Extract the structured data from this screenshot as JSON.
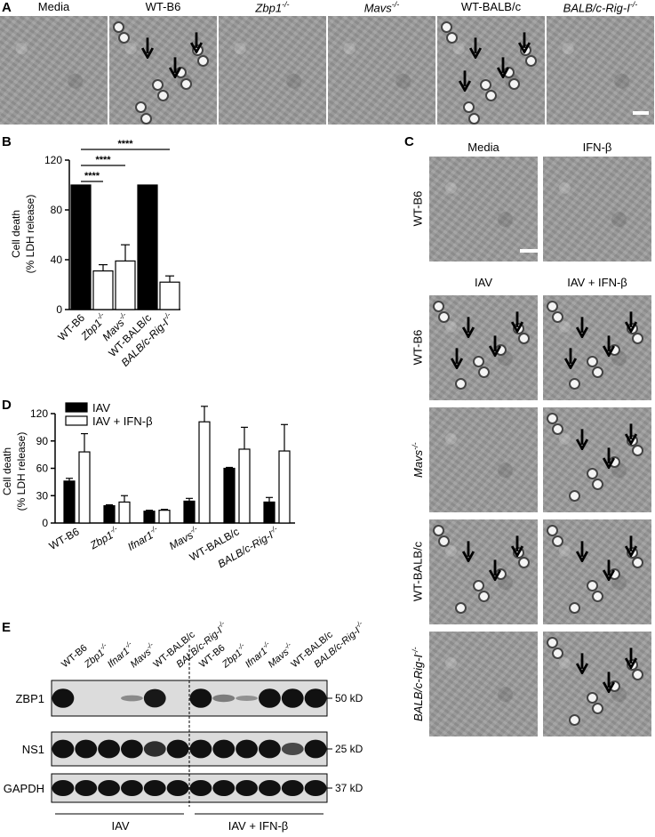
{
  "panels": {
    "a": {
      "letter": "A",
      "images": [
        {
          "label": "Media",
          "italic": false,
          "arrows": 0
        },
        {
          "label": "WT-B6",
          "italic": false,
          "arrows": 3
        },
        {
          "label": "Zbp1",
          "sup": "-/-",
          "italic": true,
          "arrows": 0
        },
        {
          "label": "Mavs",
          "sup": "-/-",
          "italic": true,
          "arrows": 0
        },
        {
          "label": "WT-BALB/c",
          "italic": false,
          "arrows": 4
        },
        {
          "label": "BALB/c-Rig-I",
          "sup": "-/-",
          "italic": true,
          "arrows": 0
        }
      ]
    },
    "b": {
      "letter": "B",
      "ylabel_line1": "Cell death",
      "ylabel_line2": "(% LDH release)",
      "significance": [
        "****",
        "****",
        "****"
      ]
    },
    "c": {
      "letter": "C",
      "col_top": [
        "Media",
        "IFN-β"
      ],
      "col_bottom": [
        "IAV",
        "IAV + IFN-β"
      ],
      "rows": [
        {
          "label": "WT-B6",
          "sup": "",
          "italic": false
        },
        {
          "label": "WT-B6",
          "sup": "",
          "italic": false
        },
        {
          "label": "Mavs",
          "sup": "-/-",
          "italic": true
        },
        {
          "label": "WT-BALB/c",
          "sup": "",
          "italic": false
        },
        {
          "label": "BALB/c-Rig-I",
          "sup": "-/-",
          "italic": true
        }
      ]
    },
    "d": {
      "letter": "D",
      "ylabel_line1": "Cell death",
      "ylabel_line2": "(% LDH release)",
      "legend": [
        "IAV",
        "IAV + IFN-β"
      ]
    },
    "e": {
      "letter": "E",
      "lanes": [
        {
          "label": "WT-B6",
          "sup": "",
          "italic": false
        },
        {
          "label": "Zbp1",
          "sup": "-/-",
          "italic": true
        },
        {
          "label": "Ifnar1",
          "sup": "-/-",
          "italic": true
        },
        {
          "label": "Mavs",
          "sup": "-/-",
          "italic": true
        },
        {
          "label": "WT-BALB/c",
          "sup": "",
          "italic": false
        },
        {
          "label": "BALB/c-Rig-I",
          "sup": "-/-",
          "italic": true
        }
      ],
      "proteins": [
        "ZBP1",
        "NS1",
        "GAPDH"
      ],
      "sizes": [
        "50 kD",
        "25 kD",
        "37 kD"
      ],
      "groups": [
        "IAV",
        "IAV + IFN-β"
      ],
      "zbp1_intensity": [
        1,
        0,
        0,
        0.15,
        0.95,
        0,
        1,
        0.25,
        0.1,
        1,
        1,
        1
      ],
      "ns1_intensity": [
        1,
        1,
        1,
        1,
        0.8,
        1,
        1,
        1,
        1,
        1,
        0.6,
        1
      ],
      "gapdh_intensity": [
        1,
        1,
        1,
        1,
        1,
        1,
        1,
        1,
        1,
        1,
        1,
        1
      ]
    }
  },
  "chart_data": [
    {
      "type": "bar",
      "panel": "B",
      "categories": [
        "WT-B6",
        "Zbp1-/-",
        "Mavs-/-",
        "WT-BALB/c",
        "BALB/c-Rig-I-/-"
      ],
      "values": [
        100,
        31,
        39,
        100,
        22
      ],
      "errors": [
        0,
        5,
        13,
        0,
        5
      ],
      "fill": [
        "#000000",
        "#ffffff",
        "#ffffff",
        "#000000",
        "#ffffff"
      ],
      "ylabel": "Cell death (% LDH release)",
      "ylim": [
        0,
        120
      ],
      "yticks": [
        0,
        40,
        80,
        120
      ]
    },
    {
      "type": "bar",
      "panel": "D",
      "categories": [
        "WT-B6",
        "Zbp1-/-",
        "Ifnar1-/-",
        "Mavs-/-",
        "WT-BALB/c",
        "BALB/c-Rig-I-/-"
      ],
      "series": [
        {
          "name": "IAV",
          "values": [
            46,
            19,
            13,
            24,
            60,
            23
          ],
          "errors": [
            3,
            1,
            1,
            3,
            1,
            5
          ],
          "color": "#000000"
        },
        {
          "name": "IAV + IFN-β",
          "values": [
            78,
            23,
            14,
            111,
            81,
            79
          ],
          "errors": [
            20,
            7,
            1,
            17,
            24,
            29
          ],
          "color": "#ffffff"
        }
      ],
      "ylabel": "Cell death (% LDH release)",
      "ylim": [
        0,
        120
      ],
      "yticks": [
        0,
        30,
        60,
        90,
        120
      ]
    }
  ]
}
